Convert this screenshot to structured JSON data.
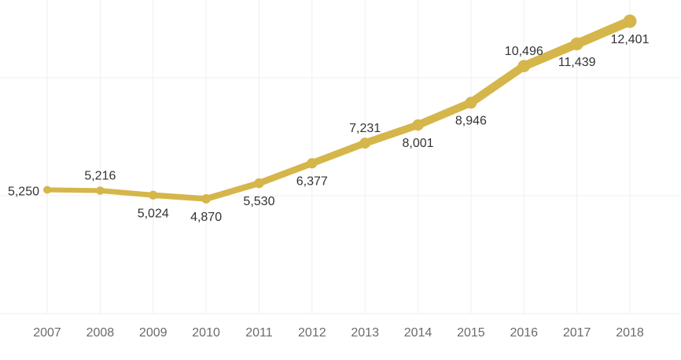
{
  "chart_data": {
    "type": "line",
    "title": "",
    "xlabel": "",
    "ylabel": "",
    "categories": [
      "2007",
      "2008",
      "2009",
      "2010",
      "2011",
      "2012",
      "2013",
      "2014",
      "2015",
      "2016",
      "2017",
      "2018"
    ],
    "series": [
      {
        "values": [
          5250,
          5216,
          5024,
          4870,
          5530,
          6377,
          7231,
          8001,
          8946,
          10496,
          11439,
          12401
        ]
      }
    ],
    "data_labels": [
      "5,250",
      "5,216",
      "5,024",
      "4,870",
      "5,530",
      "6,377",
      "7,231",
      "8,001",
      "8,946",
      "10,496",
      "11,439",
      "12,401"
    ],
    "label_side": [
      "left",
      "above",
      "below",
      "below",
      "below",
      "below",
      "above",
      "below",
      "below",
      "above",
      "below",
      "below"
    ],
    "ylim": [
      0,
      15000
    ],
    "y_gridlines": [
      5000,
      10000,
      15000
    ],
    "grid": true,
    "line_color": "#D5B64A",
    "grid_color": "#EFEFEF",
    "tick_color": "#6B6B6B",
    "label_color": "#333333"
  }
}
